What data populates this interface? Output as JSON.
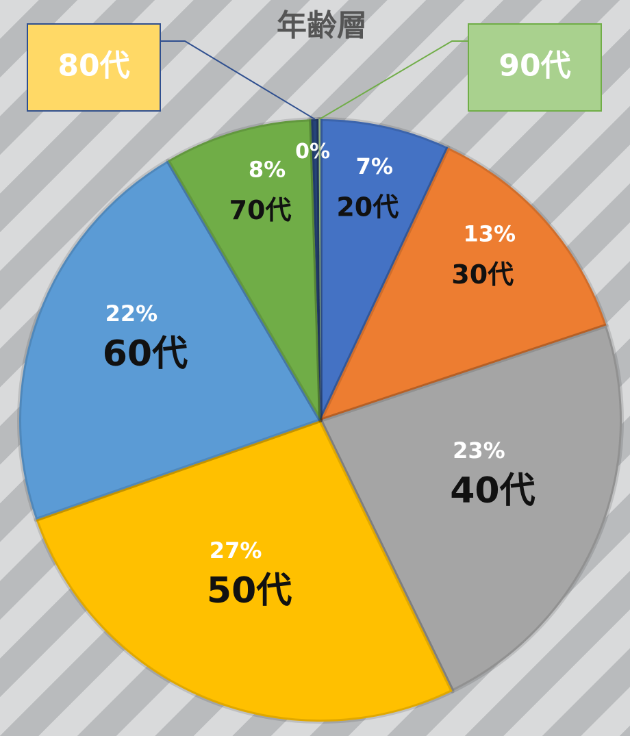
{
  "chart_data": {
    "type": "pie",
    "title": "年齢層",
    "categories": [
      "20代",
      "30代",
      "40代",
      "50代",
      "60代",
      "70代",
      "80代",
      "90代"
    ],
    "values": [
      7,
      13,
      23,
      27,
      22,
      8,
      0.4,
      0.1
    ],
    "value_labels": [
      "7%",
      "13%",
      "23%",
      "27%",
      "22%",
      "8%",
      "0%",
      null
    ],
    "colors": [
      "#4472c4",
      "#ed7d31",
      "#a5a5a5",
      "#ffc000",
      "#5b9bd5",
      "#70ad47",
      "#264478",
      "#a9d18e"
    ]
  }
}
